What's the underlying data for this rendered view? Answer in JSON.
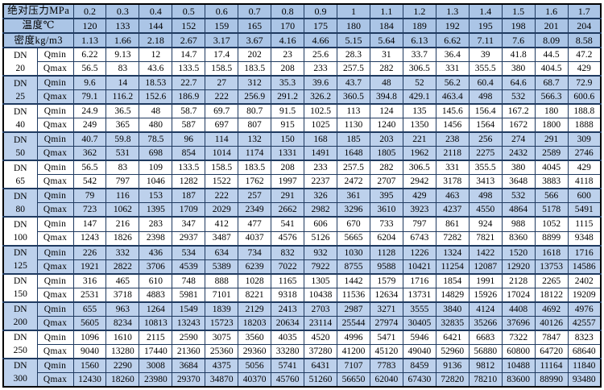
{
  "colors": {
    "header_fill": "#abc5e6",
    "zebra_blue_fill": "#bdd1ec",
    "zebra_white_fill": "#ffffff",
    "grid_line": "#1f3a60",
    "outer_border": "#000000",
    "text": "#000000"
  },
  "table": {
    "dn_prefix": "DN",
    "qmin_label": "Qmin",
    "qmax_label": "Qmax",
    "header_rows": [
      {
        "name": "pressure",
        "label": "绝对压力MPa",
        "values": [
          "0.2",
          "0.3",
          "0.4",
          "0.5",
          "0.6",
          "0.7",
          "0.8",
          "0.9",
          "1",
          "1.1",
          "1.2",
          "1.3",
          "1.4",
          "1.5",
          "1.6",
          "1.7"
        ]
      },
      {
        "name": "temperature",
        "label": "温度℃",
        "values": [
          "120",
          "133",
          "144",
          "152",
          "159",
          "165",
          "170",
          "175",
          "180",
          "184",
          "189",
          "192",
          "195",
          "198",
          "201",
          "204"
        ]
      },
      {
        "name": "density",
        "label": "密度kg/m3",
        "values": [
          "1.13",
          "1.66",
          "2.18",
          "2.67",
          "3.17",
          "3.67",
          "4.16",
          "4.66",
          "5.15",
          "5.64",
          "6.13",
          "6.62",
          "7.11",
          "7.6",
          "8.09",
          "8.58"
        ]
      }
    ],
    "groups": [
      {
        "dn": "20",
        "qmin": [
          "6.22",
          "9.13",
          "12",
          "14.7",
          "17.4",
          "202",
          "23",
          "25.6",
          "28.3",
          "31",
          "33.7",
          "36.4",
          "39",
          "41.8",
          "44.5",
          "47.2"
        ],
        "qmax": [
          "56.5",
          "83",
          "43.6",
          "133.5",
          "158.5",
          "183.5",
          "208",
          "233",
          "257.5",
          "282",
          "306.5",
          "331",
          "355.5",
          "380",
          "404.5",
          "429"
        ]
      },
      {
        "dn": "25",
        "qmin": [
          "9.6",
          "14",
          "18.53",
          "22.7",
          "27",
          "312",
          "35.3",
          "39.6",
          "43.7",
          "48",
          "52",
          "56.2",
          "60.4",
          "64.6",
          "68.7",
          "72.9"
        ],
        "qmax": [
          "79.1",
          "116.2",
          "152.6",
          "186.9",
          "222",
          "256.9",
          "291.2",
          "326.2",
          "360.5",
          "394.8",
          "429.1",
          "463.4",
          "498",
          "532",
          "566.3",
          "600.6"
        ]
      },
      {
        "dn": "40",
        "qmin": [
          "24.9",
          "36.5",
          "48",
          "58.7",
          "69.7",
          "80.7",
          "91.5",
          "102.5",
          "113",
          "124",
          "135",
          "145.6",
          "156.4",
          "167.2",
          "180",
          "188.8"
        ],
        "qmax": [
          "249",
          "365",
          "480",
          "587",
          "697",
          "807",
          "915",
          "1025",
          "1130",
          "1240",
          "1350",
          "1456",
          "1564",
          "1672",
          "1800",
          "1888"
        ]
      },
      {
        "dn": "50",
        "qmin": [
          "40.7",
          "59.8",
          "78.5",
          "96",
          "114",
          "132",
          "150",
          "168",
          "185",
          "203",
          "221",
          "238",
          "256",
          "274",
          "291",
          "309"
        ],
        "qmax": [
          "362",
          "531",
          "698",
          "854",
          "1014",
          "1174",
          "1331",
          "1491",
          "1648",
          "1805",
          "1962",
          "2118",
          "2275",
          "2432",
          "2589",
          "2746"
        ]
      },
      {
        "dn": "65",
        "qmin": [
          "56.5",
          "83",
          "109",
          "133.5",
          "158.5",
          "183.5",
          "208",
          "233",
          "257.5",
          "282",
          "306.5",
          "331",
          "355.5",
          "380",
          "4045",
          "429"
        ],
        "qmax": [
          "542",
          "797",
          "1046",
          "1282",
          "1522",
          "1762",
          "1997",
          "2237",
          "2472",
          "2707",
          "2942",
          "3178",
          "3413",
          "3648",
          "3883",
          "4118"
        ]
      },
      {
        "dn": "80",
        "qmin": [
          "79",
          "116",
          "153",
          "187",
          "222",
          "257",
          "291",
          "326",
          "361",
          "395",
          "429",
          "463",
          "498",
          "532",
          "566",
          "600"
        ],
        "qmax": [
          "723",
          "1062",
          "1395",
          "1709",
          "2029",
          "2349",
          "2662",
          "2982",
          "3296",
          "3610",
          "3923",
          "4237",
          "4550",
          "4864",
          "5178",
          "5491"
        ]
      },
      {
        "dn": "100",
        "qmin": [
          "147",
          "216",
          "283",
          "347",
          "412",
          "477",
          "541",
          "606",
          "670",
          "733",
          "797",
          "861",
          "924",
          "988",
          "1052",
          "1115"
        ],
        "qmax": [
          "1243",
          "1826",
          "2398",
          "2937",
          "3487",
          "4037",
          "4576",
          "5126",
          "5665",
          "6204",
          "6743",
          "7282",
          "7821",
          "8360",
          "8899",
          "9348"
        ]
      },
      {
        "dn": "125",
        "qmin": [
          "226",
          "332",
          "436",
          "534",
          "634",
          "734",
          "832",
          "932",
          "1030",
          "1128",
          "1226",
          "1324",
          "1422",
          "1520",
          "1618",
          "1716"
        ],
        "qmax": [
          "1921",
          "2822",
          "3706",
          "4539",
          "5389",
          "6239",
          "7022",
          "7922",
          "8755",
          "9588",
          "10421",
          "11254",
          "12087",
          "12920",
          "13753",
          "14586"
        ]
      },
      {
        "dn": "150",
        "qmin": [
          "316",
          "465",
          "610",
          "748",
          "888",
          "1028",
          "1165",
          "1305",
          "1442",
          "1579",
          "1716",
          "1854",
          "1991",
          "2128",
          "2265",
          "2402"
        ],
        "qmax": [
          "2531",
          "3718",
          "4883",
          "5981",
          "7101",
          "8221",
          "9318",
          "10438",
          "11536",
          "12634",
          "13731",
          "14829",
          "15926",
          "17024",
          "18122",
          "19209"
        ]
      },
      {
        "dn": "200",
        "qmin": [
          "655",
          "963",
          "1264",
          "1549",
          "1839",
          "2129",
          "2413",
          "2703",
          "2987",
          "3271",
          "3555",
          "3840",
          "4124",
          "4408",
          "4692",
          "4976"
        ],
        "qmax": [
          "5605",
          "8234",
          "10813",
          "13243",
          "15723",
          "18203",
          "20634",
          "23114",
          "25544",
          "27974",
          "30405",
          "32835",
          "35266",
          "37696",
          "40126",
          "42557"
        ]
      },
      {
        "dn": "250",
        "qmin": [
          "1096",
          "1610",
          "2115",
          "2590",
          "3075",
          "3560",
          "4035",
          "4520",
          "4996",
          "5471",
          "5946",
          "6421",
          "6683",
          "7322",
          "7847",
          "8323"
        ],
        "qmax": [
          "9040",
          "13280",
          "17440",
          "21360",
          "25360",
          "29360",
          "33280",
          "37280",
          "41200",
          "45120",
          "49040",
          "52960",
          "56880",
          "60800",
          "64720",
          "68640"
        ]
      },
      {
        "dn": "300",
        "qmin": [
          "1560",
          "2290",
          "3008",
          "3684",
          "4375",
          "5056",
          "5741",
          "6431",
          "7107",
          "7783",
          "8459",
          "9136",
          "9812",
          "10488",
          "11164",
          "11840"
        ],
        "qmax": [
          "12430",
          "18260",
          "23980",
          "29370",
          "34870",
          "40370",
          "45760",
          "51260",
          "56650",
          "62040",
          "67430",
          "72820",
          "78210",
          "83600",
          "88990",
          "93480"
        ]
      }
    ]
  }
}
